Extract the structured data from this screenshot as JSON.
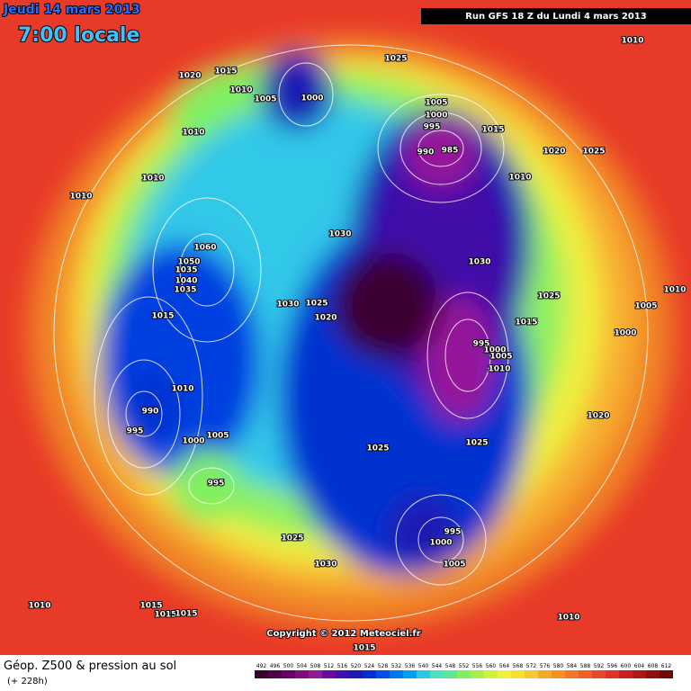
{
  "header": {
    "date": "Jeudi 14 mars 2013",
    "time": "7:00 locale",
    "run": "Run GFS 18 Z du Lundi 4 mars 2013"
  },
  "copyright": "Copyright © 2012 Meteociel.fr",
  "footer": {
    "title": "Géop. Z500 & pression au sol",
    "subtitle": "(+ 228h)"
  },
  "colorbar": {
    "labels": [
      "492",
      "496",
      "500",
      "504",
      "508",
      "512",
      "516",
      "520",
      "524",
      "528",
      "532",
      "536",
      "540",
      "544",
      "548",
      "552",
      "556",
      "560",
      "564",
      "568",
      "572",
      "576",
      "580",
      "584",
      "588",
      "592",
      "596",
      "600",
      "604",
      "608",
      "612"
    ],
    "colors": [
      "#3a0030",
      "#52004a",
      "#6a0066",
      "#800a80",
      "#96189a",
      "#6a0aa0",
      "#4010a8",
      "#1a1ab4",
      "#0030d0",
      "#0050e8",
      "#0078f0",
      "#00a0f0",
      "#28c8e8",
      "#50e0c0",
      "#60e890",
      "#80f060",
      "#a8f048",
      "#d0f040",
      "#f0f040",
      "#f8e030",
      "#f8c830",
      "#f8a828",
      "#f89028",
      "#f07828",
      "#f06028",
      "#e84828",
      "#e03028",
      "#c82020",
      "#b01818",
      "#901010",
      "#700808"
    ]
  },
  "isobars": [
    "1010",
    "1015",
    "1020",
    "1025",
    "1010",
    "1005",
    "1000",
    "1005",
    "1000",
    "995",
    "1015",
    "990",
    "985",
    "1020",
    "1025",
    "1010",
    "1010",
    "1010",
    "1010",
    "1030",
    "1060",
    "1050",
    "1035",
    "1040",
    "1035",
    "1030",
    "1025",
    "1010",
    "1005",
    "1030",
    "1025",
    "1020",
    "1015",
    "1015",
    "1000",
    "995",
    "1000",
    "1005",
    "1010",
    "1010",
    "990",
    "995",
    "1005",
    "1000",
    "1020",
    "1025",
    "1025",
    "995",
    "1025",
    "995",
    "1000",
    "1005",
    "1030",
    "1010",
    "1015",
    "1015",
    "1015",
    "1010",
    "1015"
  ]
}
